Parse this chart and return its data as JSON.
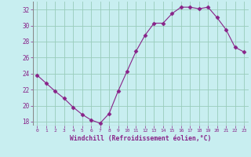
{
  "x": [
    0,
    1,
    2,
    3,
    4,
    5,
    6,
    7,
    8,
    9,
    10,
    11,
    12,
    13,
    14,
    15,
    16,
    17,
    18,
    19,
    20,
    21,
    22,
    23
  ],
  "y": [
    23.8,
    22.8,
    21.8,
    20.9,
    19.8,
    18.9,
    18.2,
    17.8,
    19.0,
    21.8,
    24.3,
    26.8,
    28.8,
    30.3,
    30.3,
    31.5,
    32.3,
    32.3,
    32.1,
    32.3,
    31.0,
    29.5,
    27.3,
    26.7
  ],
  "line_color": "#882288",
  "marker": "D",
  "markersize": 2.5,
  "bg_color": "#c8eef0",
  "grid_color": "#99ccbb",
  "xlabel": "Windchill (Refroidissement éolien,°C)",
  "tick_color": "#882288",
  "ylim": [
    17.5,
    33.0
  ],
  "xlim": [
    -0.5,
    23.5
  ],
  "yticks": [
    18,
    20,
    22,
    24,
    26,
    28,
    30,
    32
  ],
  "xticks": [
    0,
    1,
    2,
    3,
    4,
    5,
    6,
    7,
    8,
    9,
    10,
    11,
    12,
    13,
    14,
    15,
    16,
    17,
    18,
    19,
    20,
    21,
    22,
    23
  ]
}
